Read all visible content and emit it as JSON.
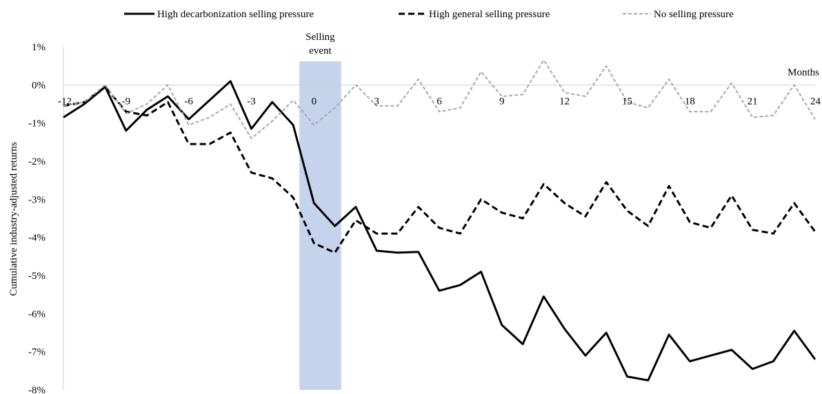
{
  "chart_data": {
    "type": "line",
    "title": "",
    "xlabel": "Months",
    "ylabel": "Cumulative industry-adjusted returns",
    "x": [
      -12,
      -11,
      -10,
      -9,
      -8,
      -7,
      -6,
      -5,
      -4,
      -3,
      -2,
      -1,
      0,
      1,
      2,
      3,
      4,
      5,
      6,
      7,
      8,
      9,
      10,
      11,
      12,
      13,
      14,
      15,
      16,
      17,
      18,
      19,
      20,
      21,
      22,
      23,
      24
    ],
    "xlim": [
      -12,
      24
    ],
    "ylim": [
      -8,
      1
    ],
    "x_ticks": [
      -12,
      -9,
      -6,
      -3,
      0,
      3,
      6,
      9,
      12,
      15,
      18,
      21,
      24
    ],
    "x_tick_labels": [
      "-12",
      "-9",
      "-6",
      "-3",
      "0",
      "3",
      "6",
      "9",
      "12",
      "15",
      "18",
      "21",
      "24"
    ],
    "y_ticks": [
      1,
      0,
      -1,
      -2,
      -3,
      -4,
      -5,
      -6,
      -7,
      -8
    ],
    "y_tick_labels": [
      "1%",
      "0%",
      "-1%",
      "-2%",
      "-3%",
      "-4%",
      "-5%",
      "-6%",
      "-7%",
      "-8%"
    ],
    "legend_position": "top",
    "shaded_region": {
      "label": [
        "Selling",
        "event"
      ],
      "x_start": -0.7,
      "x_end": 1.3,
      "color": "#c5d3ec"
    },
    "series": [
      {
        "name": "High decarbonization selling pressure",
        "style": "solid",
        "color": "#000000",
        "values": [
          -0.85,
          -0.5,
          -0.05,
          -1.2,
          -0.65,
          -0.3,
          -0.9,
          -0.4,
          0.1,
          -1.15,
          -0.45,
          -1.05,
          -3.1,
          -3.7,
          -3.2,
          -4.35,
          -4.4,
          -4.38,
          -5.4,
          -5.25,
          -4.9,
          -6.3,
          -6.8,
          -5.55,
          -6.4,
          -7.1,
          -6.5,
          -7.65,
          -7.75,
          -6.55,
          -7.25,
          -7.1,
          -6.95,
          -7.45,
          -7.25,
          -6.45,
          -7.2
        ]
      },
      {
        "name": "High general selling pressure",
        "style": "dashed",
        "color": "#000000",
        "values": [
          -0.55,
          -0.45,
          -0.05,
          -0.7,
          -0.8,
          -0.45,
          -1.55,
          -1.55,
          -1.25,
          -2.3,
          -2.45,
          -2.95,
          -4.15,
          -4.4,
          -3.55,
          -3.9,
          -3.9,
          -3.2,
          -3.75,
          -3.9,
          -3.0,
          -3.35,
          -3.5,
          -2.6,
          -3.1,
          -3.45,
          -2.55,
          -3.3,
          -3.7,
          -2.65,
          -3.6,
          -3.75,
          -2.9,
          -3.8,
          -3.9,
          -3.1,
          -3.85
        ]
      },
      {
        "name": "No selling pressure",
        "style": "dashed",
        "color": "#a6a6a6",
        "values": [
          -0.55,
          -0.45,
          0.0,
          -0.75,
          -0.5,
          0.0,
          -1.05,
          -0.85,
          -0.5,
          -1.4,
          -0.95,
          -0.4,
          -1.05,
          -0.6,
          0.0,
          -0.55,
          -0.55,
          0.15,
          -0.7,
          -0.6,
          0.35,
          -0.3,
          -0.25,
          0.65,
          -0.2,
          -0.3,
          0.5,
          -0.45,
          -0.6,
          0.15,
          -0.7,
          -0.7,
          0.05,
          -0.85,
          -0.8,
          0.0,
          -0.9
        ]
      }
    ]
  }
}
